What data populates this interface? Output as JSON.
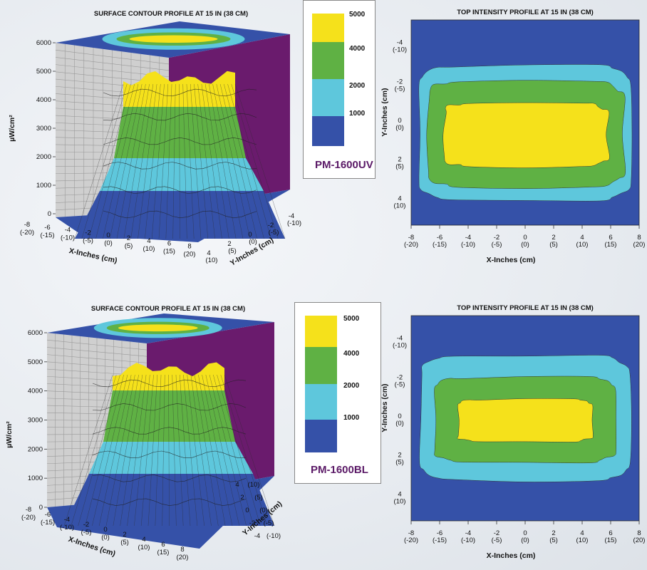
{
  "colors": {
    "level_5000": "#f5e11b",
    "level_4000": "#5fb144",
    "level_2000": "#5ec7dc",
    "level_1000": "#3551a8",
    "back_wall": "#6a1b6d",
    "side_wall": "#cfcfcf",
    "model_text": "#5b1a67"
  },
  "charts": [
    {
      "id": "uv",
      "surface_title": "SURFACE CONTOUR PROFILE AT 15 IN (38 CM)",
      "top_title": "TOP INTENSITY PROFILE AT 15 IN (38 CM)",
      "model": "PM-1600UV",
      "z_label": "µW/cm²",
      "x_label": "X-Inches (cm)",
      "y_label": "Y-Inches (cm)"
    },
    {
      "id": "bl",
      "surface_title": "SURFACE CONTOUR PROFILE AT 15 IN (38 CM)",
      "top_title": "TOP INTENSITY PROFILE AT 15 IN (38 CM)",
      "model": "PM-1600BL",
      "z_label": "µW/cm²",
      "x_label": "X-Inches (cm)",
      "y_label": "Y-Inches (cm)"
    }
  ],
  "legend_levels": [
    "5000",
    "4000",
    "2000",
    "1000"
  ],
  "z_ticks": [
    "0",
    "1000",
    "2000",
    "3000",
    "4000",
    "5000",
    "6000"
  ],
  "x_ticks_in": [
    "-8",
    "-6",
    "-4",
    "-2",
    "0",
    "2",
    "4",
    "6",
    "8"
  ],
  "x_ticks_cm": [
    "(-20)",
    "(-15)",
    "(-10)",
    "(-5)",
    "(0)",
    "(5)",
    "(10)",
    "(15)",
    "(20)"
  ],
  "y_ticks_in": [
    "-4",
    "-2",
    "0",
    "2",
    "4"
  ],
  "y_ticks_cm": [
    "(-10)",
    "(-5)",
    "(0)",
    "(5)",
    "(10)"
  ],
  "chart_data": [
    {
      "type": "heatmap",
      "title": "SURFACE CONTOUR PROFILE AT 15 IN (38 CM)",
      "model": "PM-1600UV",
      "xlabel": "X-Inches (cm)",
      "ylabel": "Y-Inches (cm)",
      "zlabel": "µW/cm²",
      "zlim": [
        0,
        6000
      ],
      "xlim_in": [
        -8,
        8
      ],
      "ylim_in": [
        -4,
        4
      ],
      "levels": [
        1000,
        2000,
        4000,
        5000
      ],
      "z_ticks": [
        0,
        1000,
        2000,
        3000,
        4000,
        5000,
        6000
      ]
    },
    {
      "type": "heatmap",
      "title": "TOP INTENSITY PROFILE AT 15 IN (38 CM)",
      "model": "PM-1600UV",
      "xlabel": "X-Inches (cm)",
      "ylabel": "Y-Inches (cm)",
      "xlim_in": [
        -8,
        8
      ],
      "ylim_in": [
        -4,
        4
      ],
      "levels": [
        1000,
        2000,
        4000,
        5000
      ]
    },
    {
      "type": "heatmap",
      "title": "SURFACE CONTOUR PROFILE AT 15 IN (38 CM)",
      "model": "PM-1600BL",
      "xlabel": "X-Inches (cm)",
      "ylabel": "Y-Inches (cm)",
      "zlabel": "µW/cm²",
      "zlim": [
        0,
        6000
      ],
      "xlim_in": [
        -8,
        8
      ],
      "ylim_in": [
        -4,
        4
      ],
      "levels": [
        1000,
        2000,
        4000,
        5000
      ],
      "z_ticks": [
        0,
        1000,
        2000,
        3000,
        4000,
        5000,
        6000
      ]
    },
    {
      "type": "heatmap",
      "title": "TOP INTENSITY PROFILE AT 15 IN (38 CM)",
      "model": "PM-1600BL",
      "xlabel": "X-Inches (cm)",
      "ylabel": "Y-Inches (cm)",
      "xlim_in": [
        -8,
        8
      ],
      "ylim_in": [
        -4,
        4
      ],
      "levels": [
        1000,
        2000,
        4000,
        5000
      ]
    }
  ]
}
